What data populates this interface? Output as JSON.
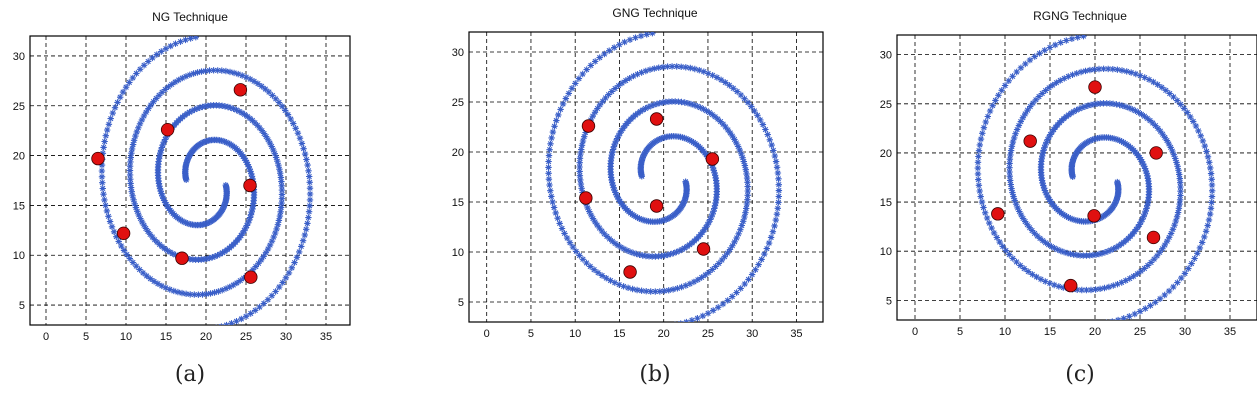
{
  "figure": {
    "captions": [
      "(a)",
      "(b)",
      "(c)"
    ]
  },
  "chart_data": [
    {
      "type": "scatter",
      "title": "NG Technique",
      "xlim": [
        -2,
        38
      ],
      "ylim": [
        3,
        32
      ],
      "x_ticks": [
        0,
        5,
        10,
        15,
        20,
        25,
        30,
        35
      ],
      "y_ticks": [
        5,
        10,
        15,
        20,
        25,
        30
      ],
      "grid": true,
      "series": [
        {
          "marker": "star",
          "color": "#3a5fc8",
          "points": "two-arm spiral dataset"
        },
        {
          "marker": "circle",
          "color": "#e01010",
          "x": [
            6.5,
            9.7,
            15.2,
            17.0,
            24.3,
            25.5,
            25.6
          ],
          "y": [
            19.7,
            12.2,
            22.6,
            9.7,
            26.6,
            17.0,
            7.8
          ]
        }
      ]
    },
    {
      "type": "scatter",
      "title": "GNG Technique",
      "xlim": [
        -2,
        38
      ],
      "ylim": [
        3,
        32
      ],
      "x_ticks": [
        0,
        5,
        10,
        15,
        20,
        25,
        30,
        35
      ],
      "y_ticks": [
        5,
        10,
        15,
        20,
        25,
        30
      ],
      "grid": true,
      "series": [
        {
          "marker": "star",
          "color": "#3a5fc8",
          "points": "two-arm spiral dataset"
        },
        {
          "marker": "circle",
          "color": "#e01010",
          "x": [
            11.2,
            11.5,
            16.2,
            19.2,
            19.2,
            24.5,
            25.5
          ],
          "y": [
            15.4,
            22.6,
            8.0,
            14.6,
            23.3,
            10.3,
            19.3
          ]
        }
      ]
    },
    {
      "type": "scatter",
      "title": "RGNG Technique",
      "xlim": [
        -2,
        38
      ],
      "ylim": [
        3,
        32
      ],
      "x_ticks": [
        0,
        5,
        10,
        15,
        20,
        25,
        30,
        35
      ],
      "y_ticks": [
        5,
        10,
        15,
        20,
        25,
        30
      ],
      "grid": true,
      "series": [
        {
          "marker": "star",
          "color": "#3a5fc8",
          "points": "two-arm spiral dataset"
        },
        {
          "marker": "circle",
          "color": "#e01010",
          "x": [
            9.2,
            12.8,
            17.3,
            19.9,
            20.0,
            26.5,
            26.8
          ],
          "y": [
            13.8,
            21.2,
            6.5,
            13.6,
            26.7,
            11.4,
            20.0
          ]
        }
      ]
    }
  ]
}
